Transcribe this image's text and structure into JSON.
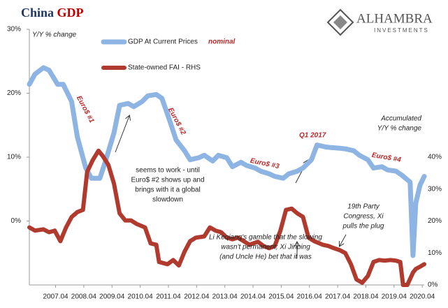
{
  "chart_data": {
    "type": "line",
    "title": [
      "China",
      "GDP"
    ],
    "logo": [
      "ALHAMBRA",
      "INVESTMENTS"
    ],
    "y_axis_label": "Y/Y % change",
    "y2_axis_label": [
      "Accumulated",
      "Y/Y % change"
    ],
    "legend_note": "nominal",
    "annotations": [
      [
        "Euro$ #1"
      ],
      [
        "Euro$ #2"
      ],
      [
        "Euro$ #3"
      ],
      [
        "Euro$ #4"
      ],
      [
        "Q1 2017"
      ],
      [
        "seems to work - until",
        "Euro$ #2 shows up and",
        "brings with it a global",
        "slowdown"
      ],
      [
        "19th Party",
        "Congress, Xi",
        "pulls the plug"
      ],
      [
        "Li Keqiang's gamble that the slowing",
        "wasn't permanent; Xi Jinping",
        "(and Uncle He) bet that it was"
      ]
    ],
    "xlim": [
      2006.4,
      2020.4
    ],
    "xticks": [
      {
        "value": 2007.33,
        "label": "2007.04"
      },
      {
        "value": 2008.33,
        "label": "2008.04"
      },
      {
        "value": 2009.33,
        "label": "2009.04"
      },
      {
        "value": 2010.33,
        "label": "2010.04"
      },
      {
        "value": 2011.33,
        "label": "2011.04"
      },
      {
        "value": 2012.33,
        "label": "2012.04"
      },
      {
        "value": 2013.33,
        "label": "2013.04"
      },
      {
        "value": 2014.33,
        "label": "2014.04"
      },
      {
        "value": 2015.33,
        "label": "2015.04"
      },
      {
        "value": 2016.33,
        "label": "2016.04"
      },
      {
        "value": 2017.33,
        "label": "2017.04"
      },
      {
        "value": 2018.33,
        "label": "2018.04"
      },
      {
        "value": 2019.33,
        "label": "2019.04"
      },
      {
        "value": 2020.33,
        "label": "2020.04"
      }
    ],
    "ylim": [
      -10,
      30
    ],
    "yticks": [
      {
        "value": 0,
        "label": "0%"
      },
      {
        "value": 10,
        "label": "10%"
      },
      {
        "value": 20,
        "label": "20%"
      },
      {
        "value": 30,
        "label": "30%"
      }
    ],
    "y2lim": [
      0,
      80
    ],
    "y2ticks": [
      {
        "value": 0,
        "label": "0%"
      },
      {
        "value": 10,
        "label": "10%"
      },
      {
        "value": 20,
        "label": "20%"
      },
      {
        "value": 30,
        "label": "30%"
      },
      {
        "value": 40,
        "label": "40%"
      }
    ],
    "series": [
      {
        "name": "GDP At Current Prices",
        "color": "#8db4e2",
        "x": [
          2006.4,
          2006.6,
          2006.9,
          2007.1,
          2007.4,
          2007.6,
          2007.9,
          2008.1,
          2008.4,
          2008.6,
          2008.9,
          2009.1,
          2009.4,
          2009.6,
          2009.9,
          2010.1,
          2010.4,
          2010.6,
          2010.9,
          2011.1,
          2011.4,
          2011.6,
          2011.9,
          2012.1,
          2012.4,
          2012.6,
          2012.9,
          2013.1,
          2013.4,
          2013.6,
          2013.9,
          2014.1,
          2014.4,
          2014.6,
          2014.9,
          2015.1,
          2015.4,
          2015.6,
          2015.9,
          2016.1,
          2016.4,
          2016.6,
          2016.9,
          2017.1,
          2017.4,
          2017.6,
          2017.9,
          2018.1,
          2018.4,
          2018.6,
          2018.9,
          2019.1,
          2019.4,
          2019.6,
          2019.9,
          2020.0,
          2020.1,
          2020.25,
          2020.4
        ],
        "values": [
          21.4,
          23,
          24,
          23.6,
          21.4,
          21.4,
          18.7,
          13.2,
          8.3,
          6.7,
          6.7,
          9.4,
          13.8,
          18.1,
          18.4,
          17.9,
          18.7,
          19.6,
          19.8,
          19.2,
          15.4,
          12.7,
          11,
          9.6,
          9.9,
          10.3,
          9.4,
          10.3,
          9.9,
          8.5,
          9.2,
          8.7,
          8.3,
          7.8,
          7.4,
          7,
          6.7,
          7.4,
          7.8,
          8.3,
          9.6,
          11.9,
          11.6,
          11.5,
          11.4,
          11.3,
          11,
          10.3,
          9.6,
          8.3,
          8.5,
          8,
          7.8,
          7.2,
          6.1,
          -5.4,
          2.8,
          5.6,
          7
        ]
      },
      {
        "name": "State-owned FAI - RHS",
        "color": "#b03a2e",
        "axis": "y2",
        "x": [
          2006.4,
          2006.6,
          2006.9,
          2007.1,
          2007.3,
          2007.5,
          2007.7,
          2007.9,
          2008.1,
          2008.3,
          2008.45,
          2008.65,
          2008.85,
          2009.0,
          2009.2,
          2009.4,
          2009.6,
          2009.8,
          2010.0,
          2010.2,
          2010.5,
          2010.7,
          2010.9,
          2011.0,
          2011.3,
          2011.5,
          2011.7,
          2011.9,
          2012.1,
          2012.3,
          2012.6,
          2012.8,
          2013.0,
          2013.2,
          2013.4,
          2013.6,
          2013.8,
          2014.0,
          2014.2,
          2014.5,
          2014.7,
          2014.9,
          2015.1,
          2015.3,
          2015.5,
          2015.7,
          2015.9,
          2016.1,
          2016.3,
          2016.5,
          2016.8,
          2017.0,
          2017.2,
          2017.4,
          2017.6,
          2017.8,
          2018.0,
          2018.2,
          2018.4,
          2018.6,
          2018.8,
          2019.0,
          2019.2,
          2019.4,
          2019.55,
          2019.65,
          2019.8,
          2020.0,
          2020.1,
          2020.25,
          2020.4
        ],
        "values": [
          18,
          17,
          17.4,
          16.5,
          17,
          13.7,
          18,
          21.3,
          22.8,
          23.5,
          35.4,
          39.1,
          42,
          40.4,
          37.6,
          31.7,
          22.4,
          20.2,
          20.2,
          19.1,
          18,
          13,
          12.6,
          7.2,
          6.5,
          7.8,
          6.1,
          10.4,
          13.7,
          14.8,
          15.2,
          18,
          17,
          16.5,
          14.8,
          14.3,
          14.8,
          13.7,
          12.6,
          13.5,
          12.2,
          11.5,
          12.2,
          17,
          23.5,
          23.9,
          22.4,
          21.3,
          14.8,
          13.7,
          12.6,
          12.2,
          11.5,
          10.9,
          10,
          6.5,
          1.7,
          0.7,
          2.8,
          7.2,
          7.8,
          7.6,
          7.8,
          7.6,
          7.2,
          0,
          0,
          3.9,
          5,
          5.7,
          6.5
        ]
      }
    ]
  }
}
